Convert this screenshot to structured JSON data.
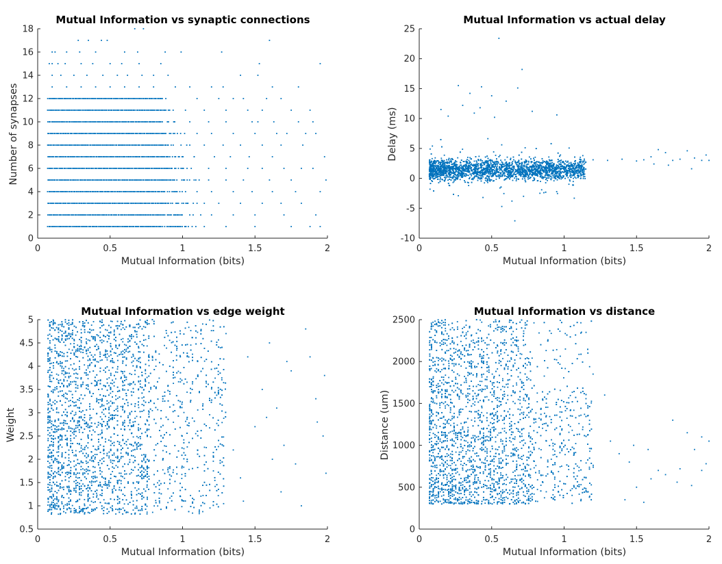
{
  "figure": {
    "marker_color": "#0072BD",
    "axis_color": "#262626",
    "background": "#ffffff"
  },
  "chart_data": [
    {
      "type": "scatter",
      "title": "Mutual Information vs synaptic connections",
      "xlabel": "Mutual Information (bits)",
      "ylabel": "Number of synapses",
      "xlim": [
        0,
        2
      ],
      "ylim": [
        0,
        18
      ],
      "xticks": [
        0,
        0.5,
        1,
        1.5,
        2
      ],
      "xtick_labels": [
        "0",
        "0.5",
        "1",
        "1.5",
        "2"
      ],
      "yticks": [
        0,
        2,
        4,
        6,
        8,
        10,
        12,
        14,
        16,
        18
      ],
      "ytick_labels": [
        "0",
        "2",
        "4",
        "6",
        "8",
        "10",
        "12",
        "14",
        "16",
        "18"
      ],
      "grid": false,
      "points": [
        [
          0.28,
          17
        ],
        [
          0.35,
          17
        ],
        [
          0.44,
          17
        ],
        [
          0.48,
          17
        ],
        [
          0.67,
          18
        ],
        [
          0.73,
          18
        ],
        [
          1.6,
          17
        ],
        [
          0.1,
          16
        ],
        [
          0.12,
          16
        ],
        [
          0.2,
          16
        ],
        [
          0.29,
          16
        ],
        [
          0.4,
          16
        ],
        [
          0.6,
          16
        ],
        [
          0.69,
          16
        ],
        [
          0.88,
          16
        ],
        [
          0.99,
          16
        ],
        [
          1.27,
          16
        ],
        [
          0.08,
          15
        ],
        [
          0.1,
          15
        ],
        [
          0.14,
          15
        ],
        [
          0.19,
          15
        ],
        [
          0.3,
          15
        ],
        [
          0.38,
          15
        ],
        [
          0.5,
          15
        ],
        [
          0.58,
          15
        ],
        [
          0.7,
          15
        ],
        [
          0.85,
          15
        ],
        [
          1.53,
          15
        ],
        [
          1.95,
          15
        ],
        [
          0.1,
          14
        ],
        [
          0.16,
          14
        ],
        [
          0.25,
          14
        ],
        [
          0.34,
          14
        ],
        [
          0.45,
          14
        ],
        [
          0.55,
          14
        ],
        [
          0.62,
          14
        ],
        [
          0.72,
          14
        ],
        [
          0.8,
          14
        ],
        [
          0.9,
          14
        ],
        [
          1.4,
          14
        ],
        [
          1.52,
          14
        ],
        [
          0.1,
          13
        ],
        [
          0.2,
          13
        ],
        [
          0.3,
          13
        ],
        [
          0.4,
          13
        ],
        [
          0.5,
          13
        ],
        [
          0.6,
          13
        ],
        [
          0.7,
          13
        ],
        [
          0.8,
          13
        ],
        [
          0.95,
          13
        ],
        [
          1.05,
          13
        ],
        [
          1.2,
          13
        ],
        [
          1.28,
          13
        ],
        [
          1.62,
          13
        ],
        [
          1.8,
          13
        ],
        [
          1.1,
          12
        ],
        [
          1.25,
          12
        ],
        [
          1.35,
          12
        ],
        [
          1.42,
          12
        ],
        [
          1.58,
          12
        ],
        [
          1.68,
          12
        ],
        [
          1.02,
          11
        ],
        [
          1.15,
          11
        ],
        [
          1.3,
          11
        ],
        [
          1.45,
          11
        ],
        [
          1.55,
          11
        ],
        [
          1.75,
          11
        ],
        [
          1.88,
          11
        ],
        [
          1.05,
          10
        ],
        [
          1.18,
          10
        ],
        [
          1.3,
          10
        ],
        [
          1.48,
          10
        ],
        [
          1.52,
          10
        ],
        [
          1.63,
          10
        ],
        [
          1.8,
          10
        ],
        [
          1.9,
          10
        ],
        [
          1.1,
          9
        ],
        [
          1.2,
          9
        ],
        [
          1.35,
          9
        ],
        [
          1.5,
          9
        ],
        [
          1.65,
          9
        ],
        [
          1.72,
          9
        ],
        [
          1.85,
          9
        ],
        [
          1.92,
          9
        ],
        [
          1.05,
          8
        ],
        [
          1.15,
          8
        ],
        [
          1.28,
          8
        ],
        [
          1.4,
          8
        ],
        [
          1.55,
          8
        ],
        [
          1.68,
          8
        ],
        [
          1.83,
          8
        ],
        [
          1.08,
          7
        ],
        [
          1.22,
          7
        ],
        [
          1.33,
          7
        ],
        [
          1.46,
          7
        ],
        [
          1.62,
          7
        ],
        [
          1.98,
          7
        ],
        [
          1.06,
          6
        ],
        [
          1.18,
          6
        ],
        [
          1.3,
          6
        ],
        [
          1.45,
          6
        ],
        [
          1.55,
          6
        ],
        [
          1.7,
          6
        ],
        [
          1.82,
          6
        ],
        [
          1.9,
          6
        ],
        [
          1.08,
          5
        ],
        [
          1.18,
          5
        ],
        [
          1.3,
          5
        ],
        [
          1.42,
          5
        ],
        [
          1.6,
          5
        ],
        [
          1.75,
          5
        ],
        [
          1.99,
          5
        ],
        [
          1.1,
          4
        ],
        [
          1.2,
          4
        ],
        [
          1.35,
          4
        ],
        [
          1.48,
          4
        ],
        [
          1.62,
          4
        ],
        [
          1.78,
          4
        ],
        [
          1.95,
          4
        ],
        [
          1.1,
          3
        ],
        [
          1.25,
          3
        ],
        [
          1.4,
          3
        ],
        [
          1.55,
          3
        ],
        [
          1.68,
          3
        ],
        [
          1.82,
          3
        ],
        [
          1.05,
          2
        ],
        [
          1.2,
          2
        ],
        [
          1.35,
          2
        ],
        [
          1.5,
          2
        ],
        [
          1.7,
          2
        ],
        [
          1.92,
          2
        ],
        [
          1.02,
          1
        ],
        [
          1.15,
          1
        ],
        [
          1.3,
          1
        ],
        [
          1.5,
          1
        ],
        [
          1.75,
          1
        ],
        [
          1.88,
          1
        ],
        [
          1.95,
          1
        ]
      ],
      "dense_rows": [
        {
          "y": 12,
          "x_min": 0.07,
          "x_max": 0.9
        },
        {
          "y": 11,
          "x_min": 0.07,
          "x_max": 0.95
        },
        {
          "y": 10,
          "x_min": 0.07,
          "x_max": 1.0
        },
        {
          "y": 9,
          "x_min": 0.07,
          "x_max": 1.05
        },
        {
          "y": 8,
          "x_min": 0.07,
          "x_max": 1.05
        },
        {
          "y": 7,
          "x_min": 0.07,
          "x_max": 1.1
        },
        {
          "y": 6,
          "x_min": 0.07,
          "x_max": 1.1
        },
        {
          "y": 5,
          "x_min": 0.07,
          "x_max": 1.15
        },
        {
          "y": 4,
          "x_min": 0.07,
          "x_max": 1.15
        },
        {
          "y": 3,
          "x_min": 0.07,
          "x_max": 1.2
        },
        {
          "y": 2,
          "x_min": 0.07,
          "x_max": 1.2
        },
        {
          "y": 1,
          "x_min": 0.07,
          "x_max": 1.1
        }
      ]
    },
    {
      "type": "scatter",
      "title": "Mutual Information vs actual delay",
      "xlabel": "Mutual Information (bits)",
      "ylabel": "Delay (ms)",
      "xlim": [
        0,
        2
      ],
      "ylim": [
        -10,
        25
      ],
      "xticks": [
        0,
        0.5,
        1,
        1.5,
        2
      ],
      "xtick_labels": [
        "0",
        "0.5",
        "1",
        "1.5",
        "2"
      ],
      "yticks": [
        -10,
        -5,
        0,
        5,
        10,
        15,
        20,
        25
      ],
      "ytick_labels": [
        "-10",
        "-5",
        "0",
        "5",
        "10",
        "15",
        "20",
        "25"
      ],
      "grid": false,
      "points": [
        [
          0.55,
          23.4
        ],
        [
          0.71,
          18.2
        ],
        [
          0.27,
          15.5
        ],
        [
          0.43,
          15.3
        ],
        [
          0.68,
          15.1
        ],
        [
          0.6,
          12.9
        ],
        [
          0.35,
          14.2
        ],
        [
          0.5,
          13.8
        ],
        [
          0.57,
          -4.7
        ],
        [
          0.66,
          -7.1
        ],
        [
          0.3,
          12.2
        ],
        [
          0.42,
          11.8
        ],
        [
          0.15,
          11.5
        ],
        [
          0.78,
          11.2
        ],
        [
          0.95,
          10.6
        ],
        [
          0.38,
          10.9
        ],
        [
          0.52,
          10.2
        ],
        [
          0.2,
          10.4
        ],
        [
          0.64,
          -3.8
        ],
        [
          0.44,
          -3.2
        ],
        [
          0.27,
          -2.9
        ],
        [
          0.72,
          -3.0
        ],
        [
          0.1,
          -2.1
        ],
        [
          0.86,
          -2.4
        ],
        [
          1.2,
          3.1
        ],
        [
          1.3,
          3.0
        ],
        [
          1.4,
          3.2
        ],
        [
          1.5,
          2.9
        ],
        [
          1.55,
          3.1
        ],
        [
          1.6,
          3.6
        ],
        [
          1.65,
          4.8
        ],
        [
          1.7,
          4.3
        ],
        [
          1.75,
          3.0
        ],
        [
          1.8,
          3.2
        ],
        [
          1.85,
          4.6
        ],
        [
          1.9,
          3.4
        ],
        [
          1.95,
          3.0
        ],
        [
          2.0,
          3.0
        ],
        [
          1.62,
          2.4
        ],
        [
          1.72,
          2.2
        ],
        [
          1.88,
          1.6
        ],
        [
          1.98,
          3.9
        ]
      ],
      "dense_region": {
        "x_min": 0.07,
        "x_max": 1.15,
        "y_center": 1.5,
        "y_spread": 2.5
      }
    },
    {
      "type": "scatter",
      "title": "Mutual Information vs edge weight",
      "xlabel": "Mutual Information (bits)",
      "ylabel": "Weight",
      "xlim": [
        0,
        2
      ],
      "ylim": [
        0.5,
        5
      ],
      "xticks": [
        0,
        0.5,
        1,
        1.5,
        2
      ],
      "xtick_labels": [
        "0",
        "0.5",
        "1",
        "1.5",
        "2"
      ],
      "yticks": [
        0.5,
        1,
        1.5,
        2,
        2.5,
        3,
        3.5,
        4,
        4.5,
        5
      ],
      "ytick_labels": [
        "0.5",
        "1",
        "1.5",
        "2",
        "2.5",
        "3",
        "3.5",
        "4",
        "4.5",
        "5"
      ],
      "grid": false,
      "points": [
        [
          1.85,
          4.8
        ],
        [
          1.92,
          3.3
        ],
        [
          1.98,
          3.8
        ],
        [
          1.93,
          2.8
        ],
        [
          1.97,
          2.5
        ],
        [
          1.99,
          1.7
        ],
        [
          1.78,
          1.9
        ],
        [
          1.7,
          2.3
        ],
        [
          1.82,
          1.0
        ],
        [
          1.6,
          4.5
        ],
        [
          1.55,
          3.5
        ],
        [
          1.62,
          2.0
        ],
        [
          1.68,
          1.3
        ],
        [
          1.45,
          4.2
        ],
        [
          1.5,
          2.7
        ],
        [
          1.4,
          1.6
        ],
        [
          1.88,
          4.2
        ],
        [
          1.75,
          3.9
        ],
        [
          1.65,
          3.1
        ],
        [
          1.3,
          4.7
        ],
        [
          1.35,
          2.2
        ],
        [
          1.42,
          1.1
        ],
        [
          1.58,
          2.9
        ],
        [
          1.72,
          4.1
        ]
      ],
      "dense_region": {
        "x_min": 0.07,
        "x_max": 1.3,
        "y_min": 0.82,
        "y_max": 5.0
      }
    },
    {
      "type": "scatter",
      "title": "Mutual Information vs distance",
      "xlabel": "Mutual Information (bits)",
      "ylabel": "Distance (um)",
      "xlim": [
        0,
        2
      ],
      "ylim": [
        0,
        2500
      ],
      "xticks": [
        0,
        0.5,
        1,
        1.5,
        2
      ],
      "xtick_labels": [
        "0",
        "0.5",
        "1",
        "1.5",
        "2"
      ],
      "yticks": [
        0,
        500,
        1000,
        1500,
        2000,
        2500
      ],
      "ytick_labels": [
        "0",
        "500",
        "1000",
        "1500",
        "2000",
        "2500"
      ],
      "grid": false,
      "points": [
        [
          1.75,
          1300
        ],
        [
          1.85,
          1150
        ],
        [
          1.95,
          1100
        ],
        [
          2.0,
          1050
        ],
        [
          1.9,
          950
        ],
        [
          1.98,
          780
        ],
        [
          1.8,
          720
        ],
        [
          1.7,
          650
        ],
        [
          1.6,
          600
        ],
        [
          1.5,
          500
        ],
        [
          1.42,
          350
        ],
        [
          1.55,
          320
        ],
        [
          1.65,
          700
        ],
        [
          1.78,
          560
        ],
        [
          1.88,
          520
        ],
        [
          1.95,
          700
        ],
        [
          1.12,
          2350
        ],
        [
          1.2,
          1850
        ],
        [
          1.28,
          1600
        ],
        [
          1.32,
          1050
        ],
        [
          1.38,
          900
        ],
        [
          1.45,
          800
        ],
        [
          1.48,
          1000
        ],
        [
          1.58,
          950
        ]
      ],
      "dense_region": {
        "x_min": 0.07,
        "x_max": 1.2,
        "y_min": 300,
        "y_max": 2500
      }
    }
  ]
}
